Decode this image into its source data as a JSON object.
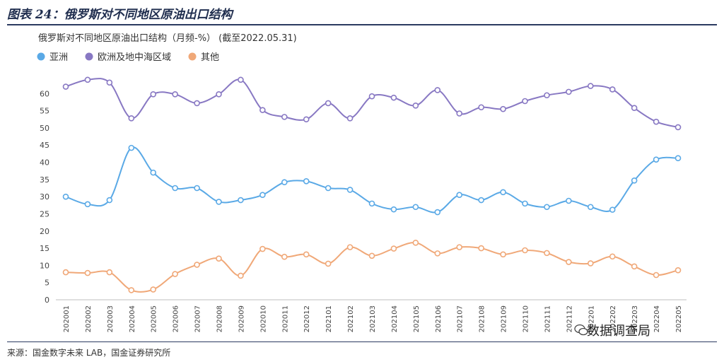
{
  "figure_title": "图表 24：俄罗斯对不同地区原油出口结构",
  "source": "来源：国金数字未来 LAB，国金证券研究所",
  "watermark": "数据调查局",
  "colors": {
    "asia": "#5aa9e6",
    "europe": "#8878c3",
    "other": "#f0a878"
  },
  "chart_data": {
    "type": "line",
    "title": "俄罗斯对不同地区原油出口结构（月频-%）   (截至2022.05.31)",
    "xlabel": "",
    "ylabel": "",
    "ylim": [
      0,
      65
    ],
    "yticks": [
      0,
      5,
      10,
      15,
      20,
      25,
      30,
      35,
      40,
      45,
      50,
      55,
      60
    ],
    "grid": false,
    "legend": "top-left",
    "categories": [
      "202001",
      "202002",
      "202003",
      "202004",
      "202005",
      "202006",
      "202007",
      "202008",
      "202009",
      "202010",
      "202011",
      "202012",
      "202101",
      "202102",
      "202103",
      "202104",
      "202105",
      "202106",
      "202107",
      "202108",
      "202109",
      "202110",
      "202111",
      "202112",
      "202201",
      "202202",
      "202203",
      "202204",
      "202205"
    ],
    "series": [
      {
        "name": "亚洲",
        "color": "#5aa9e6",
        "values": [
          30,
          27.8,
          29,
          44.2,
          37,
          32.5,
          32.5,
          28.5,
          29,
          30.5,
          34.2,
          34.5,
          32.5,
          32,
          28,
          26.3,
          27,
          25.5,
          30.5,
          29,
          31.3,
          28,
          27,
          28.8,
          27,
          26.2,
          34.7,
          40.8,
          41.2
        ]
      },
      {
        "name": "欧洲及地中海区域",
        "color": "#8878c3",
        "values": [
          62,
          64,
          63.2,
          52.8,
          59.8,
          59.8,
          57.2,
          59.8,
          64,
          55.2,
          53.2,
          52.5,
          57.2,
          52.8,
          59.2,
          58.8,
          56.5,
          61,
          54.2,
          56,
          55.5,
          57.8,
          59.5,
          60.5,
          62.2,
          61.2,
          55.8,
          51.8,
          50.2
        ]
      },
      {
        "name": "其他",
        "color": "#f0a878",
        "values": [
          8,
          7.8,
          8,
          2.8,
          3,
          7.5,
          10.2,
          12,
          7,
          14.8,
          12.5,
          13.2,
          10.5,
          15.3,
          12.8,
          14.9,
          16.6,
          13.5,
          15.3,
          15,
          13.2,
          14.4,
          13.6,
          11,
          10.6,
          12.6,
          9.7,
          7.2,
          8.6
        ]
      }
    ]
  }
}
